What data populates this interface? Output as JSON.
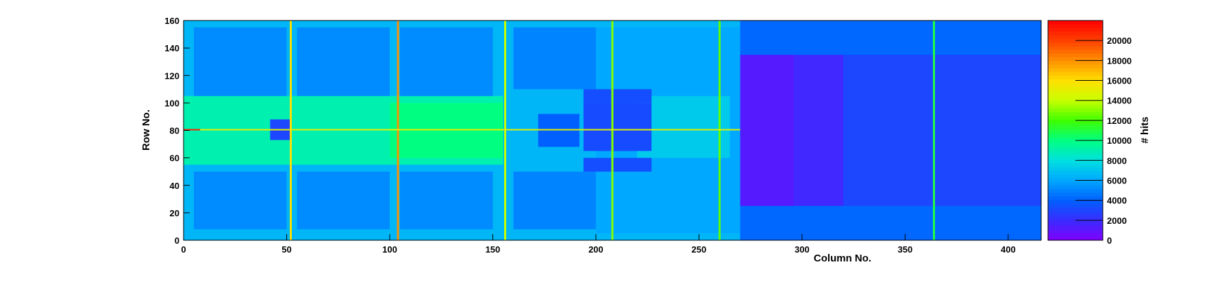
{
  "chart_data": {
    "type": "heatmap",
    "title": "",
    "xlabel": "Column No.",
    "ylabel": "Row No.",
    "zlabel": "# hits",
    "xlim": [
      0,
      416
    ],
    "ylim": [
      0,
      160
    ],
    "zlim": [
      0,
      22000
    ],
    "x_ticks": [
      0,
      50,
      100,
      150,
      200,
      250,
      300,
      350,
      400
    ],
    "y_ticks": [
      0,
      20,
      40,
      60,
      80,
      100,
      120,
      140,
      160
    ],
    "z_ticks": [
      0,
      2000,
      4000,
      6000,
      8000,
      10000,
      12000,
      14000,
      16000,
      18000,
      20000
    ],
    "palette": [
      "#8000ff",
      "#3a2cff",
      "#0060ff",
      "#00a8ff",
      "#00e0e0",
      "#00ff80",
      "#40ff00",
      "#c8ff00",
      "#ffe000",
      "#ff9000",
      "#ff4000",
      "#ff0000"
    ],
    "regions": [
      {
        "x": [
          0,
          416
        ],
        "y": [
          0,
          160
        ],
        "value": 5000
      },
      {
        "x": [
          0,
          270
        ],
        "y": [
          0,
          160
        ],
        "value": 6500
      },
      {
        "x": [
          0,
          155
        ],
        "y": [
          55,
          105
        ],
        "value": 9000
      },
      {
        "x": [
          100,
          155
        ],
        "y": [
          60,
          100
        ],
        "value": 10000
      },
      {
        "x": [
          5,
          50
        ],
        "y": [
          105,
          155
        ],
        "value": 5200
      },
      {
        "x": [
          55,
          100
        ],
        "y": [
          105,
          155
        ],
        "value": 5200
      },
      {
        "x": [
          105,
          150
        ],
        "y": [
          105,
          155
        ],
        "value": 5200
      },
      {
        "x": [
          160,
          200
        ],
        "y": [
          110,
          155
        ],
        "value": 5000
      },
      {
        "x": [
          5,
          50
        ],
        "y": [
          8,
          50
        ],
        "value": 5200
      },
      {
        "x": [
          55,
          100
        ],
        "y": [
          8,
          50
        ],
        "value": 5200
      },
      {
        "x": [
          105,
          150
        ],
        "y": [
          8,
          50
        ],
        "value": 5200
      },
      {
        "x": [
          160,
          200
        ],
        "y": [
          8,
          50
        ],
        "value": 5000
      },
      {
        "x": [
          200,
          270
        ],
        "y": [
          5,
          155
        ],
        "value": 6000
      },
      {
        "x": [
          220,
          265
        ],
        "y": [
          60,
          105
        ],
        "value": 7200
      },
      {
        "x": [
          42,
          52
        ],
        "y": [
          73,
          88
        ],
        "value": 3000
      },
      {
        "x": [
          172,
          192
        ],
        "y": [
          68,
          92
        ],
        "value": 4000
      },
      {
        "x": [
          194,
          227
        ],
        "y": [
          65,
          100
        ],
        "value": 3200
      },
      {
        "x": [
          194,
          227
        ],
        "y": [
          50,
          60
        ],
        "value": 3300
      },
      {
        "x": [
          194,
          227
        ],
        "y": [
          100,
          110
        ],
        "value": 3300
      },
      {
        "x": [
          270,
          416
        ],
        "y": [
          0,
          160
        ],
        "value": 4200
      },
      {
        "x": [
          270,
          296
        ],
        "y": [
          25,
          135
        ],
        "value": 1200
      },
      {
        "x": [
          296,
          320
        ],
        "y": [
          25,
          135
        ],
        "value": 1800
      },
      {
        "x": [
          320,
          416
        ],
        "y": [
          25,
          135
        ],
        "value": 3000
      }
    ],
    "columns": [
      {
        "x": 52,
        "value": 16000
      },
      {
        "x": 104,
        "value": 18000
      },
      {
        "x": 156,
        "value": 14000
      },
      {
        "x": 208,
        "value": 13000
      },
      {
        "x": 260,
        "value": 12500
      },
      {
        "x": 364,
        "value": 11000
      }
    ],
    "rows": [
      {
        "y": 80.5,
        "x": [
          0,
          270
        ],
        "value": 15000
      },
      {
        "y": 80.5,
        "x": [
          0,
          8
        ],
        "value": 21000
      }
    ]
  }
}
